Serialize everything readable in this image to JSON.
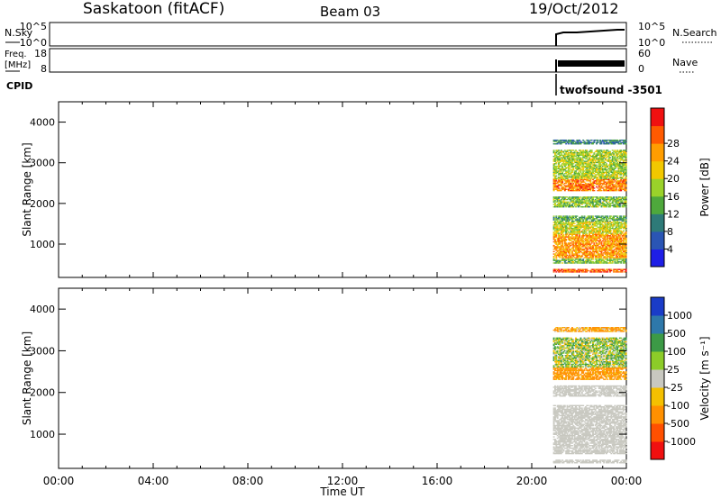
{
  "header": {
    "station": "Saskatoon (fitACF)",
    "beam": "Beam 03",
    "date": "19/Oct/2012"
  },
  "panels": {
    "nsky_label": "N.Sky",
    "nsky_ticks": [
      "10^5",
      "10^0"
    ],
    "nsearch_label": "N.Search",
    "nsearch_ticks": [
      "10^5",
      "10^0"
    ],
    "freq_label": "Freq.",
    "freq_unit": "[MHz]",
    "freq_ticks": [
      "18",
      "8"
    ],
    "nave_label": "Nave",
    "nave_ticks": [
      "60",
      "0"
    ],
    "cpid_label": "CPID",
    "cpid_value": "twofsound  -3501"
  },
  "chart_data": [
    {
      "type": "heatmap",
      "title": "",
      "ylabel": "Slant Range [km]",
      "yticks": [
        "1000",
        "2000",
        "3000",
        "4000"
      ],
      "ylim": [
        180,
        4500
      ],
      "xlim": [
        0,
        24
      ],
      "data_x_range": [
        20.9,
        24.0
      ],
      "colorbar": {
        "label": "Power [dB]",
        "ticks": [
          "4",
          "8",
          "12",
          "16",
          "20",
          "24",
          "28"
        ],
        "colors": [
          "#1e1ee6",
          "#2a55b4",
          "#2e7a78",
          "#4ea83c",
          "#9ad22a",
          "#f2c800",
          "#ff9d00",
          "#ff5a00",
          "#f01010"
        ]
      },
      "bands": [
        {
          "range_km": [
            300,
            380
          ],
          "value": 28
        },
        {
          "range_km": [
            520,
            640
          ],
          "value": 14
        },
        {
          "range_km": [
            650,
            1250
          ],
          "value": 24
        },
        {
          "range_km": [
            1250,
            1550
          ],
          "value": 18
        },
        {
          "range_km": [
            1550,
            1700
          ],
          "value": 12
        },
        {
          "range_km": [
            1900,
            2150
          ],
          "value": 14
        },
        {
          "range_km": [
            2300,
            2600
          ],
          "value": 26
        },
        {
          "range_km": [
            2600,
            3300
          ],
          "value": 16
        },
        {
          "range_km": [
            3450,
            3550
          ],
          "value": 8
        }
      ]
    },
    {
      "type": "heatmap",
      "title": "",
      "ylabel": "Slant Range [km]",
      "yticks": [
        "1000",
        "2000",
        "3000",
        "4000"
      ],
      "ylim": [
        180,
        4500
      ],
      "xlim": [
        0,
        24
      ],
      "data_x_range": [
        20.9,
        24.0
      ],
      "xlabel": "Time UT",
      "xticks": [
        "00:00",
        "04:00",
        "08:00",
        "12:00",
        "16:00",
        "20:00",
        "00:00"
      ],
      "colorbar": {
        "label": "Velocity  [m s⁻¹]",
        "ticks": [
          "1000",
          "500",
          "100",
          "25",
          "-25",
          "-100",
          "-500",
          "-1000"
        ],
        "colors": [
          "#1a3cc8",
          "#2e78aa",
          "#3c9a46",
          "#8ccc28",
          "#c8c8c0",
          "#f4c000",
          "#ff9000",
          "#ff5000",
          "#f01010"
        ]
      },
      "bands": [
        {
          "range_km": [
            300,
            380
          ],
          "value": 0
        },
        {
          "range_km": [
            520,
            640
          ],
          "value": 0
        },
        {
          "range_km": [
            650,
            1250
          ],
          "value": 0
        },
        {
          "range_km": [
            1250,
            1700
          ],
          "value": 0
        },
        {
          "range_km": [
            1900,
            2150
          ],
          "value": 0
        },
        {
          "range_km": [
            2300,
            2600
          ],
          "value": -200
        },
        {
          "range_km": [
            2600,
            3300
          ],
          "value": 50
        },
        {
          "range_km": [
            3450,
            3550
          ],
          "value": -150
        }
      ]
    }
  ]
}
